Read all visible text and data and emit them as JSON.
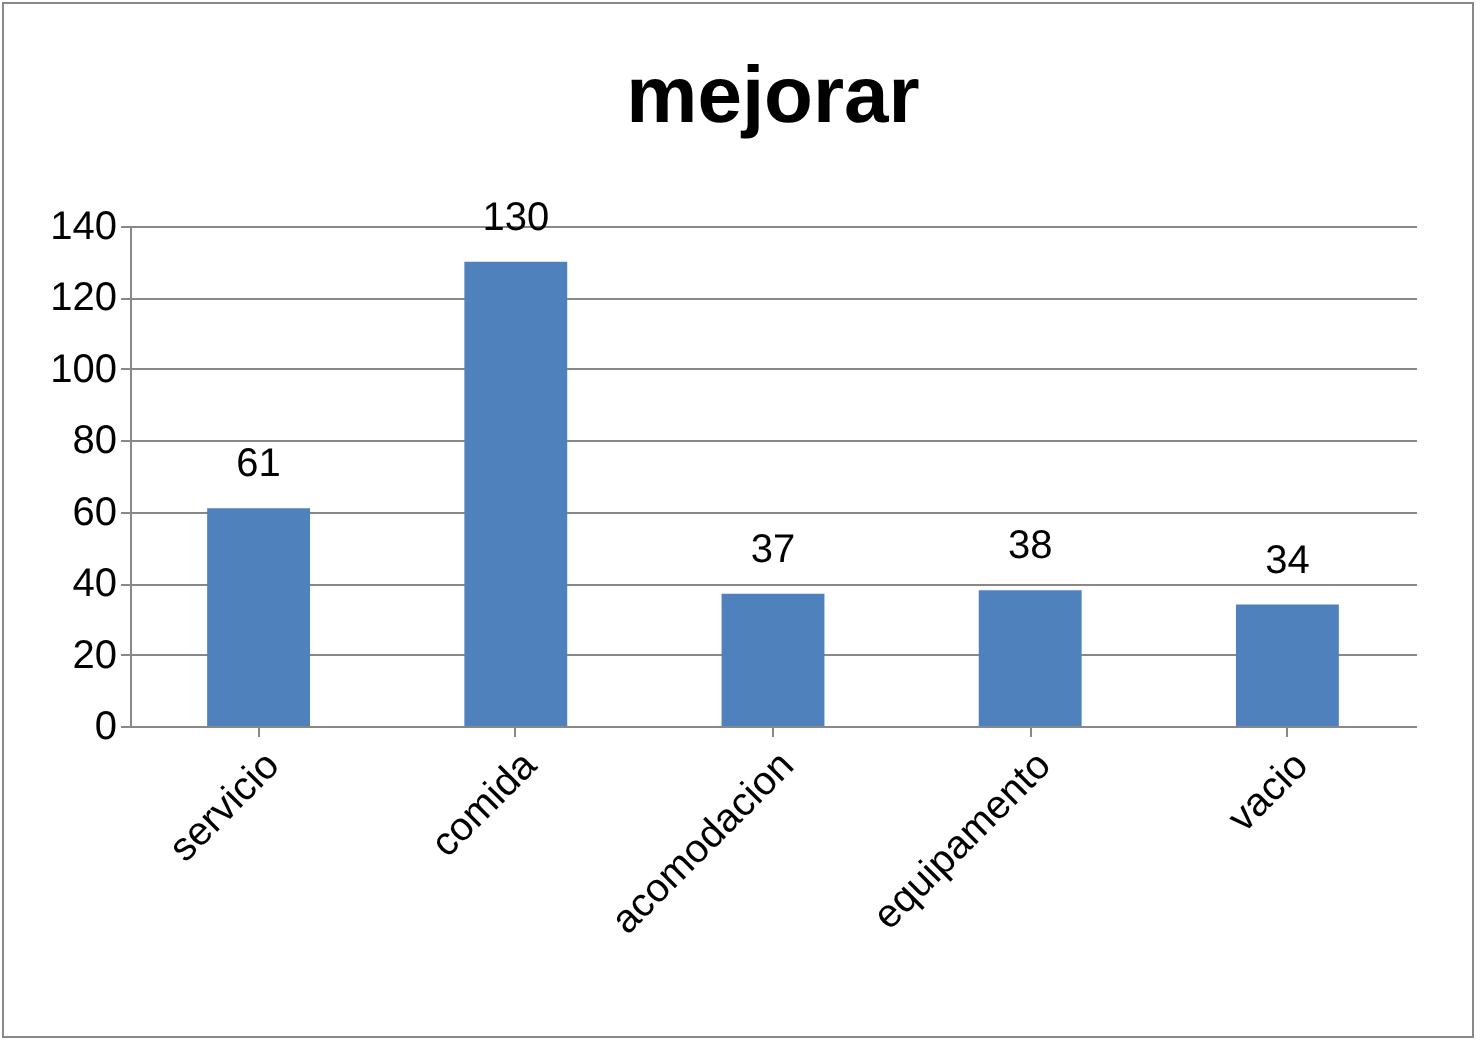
{
  "chart_data": {
    "type": "bar",
    "title": "mejorar",
    "categories": [
      "servicio",
      "comida",
      "acomodacion",
      "equipamento",
      "vacio"
    ],
    "values": [
      61,
      130,
      37,
      38,
      34
    ],
    "color": "#4f81bd",
    "ylim": [
      0,
      140
    ],
    "yticks": [
      0,
      20,
      40,
      60,
      80,
      100,
      120,
      140
    ],
    "grid": "y",
    "data_labels": true
  }
}
